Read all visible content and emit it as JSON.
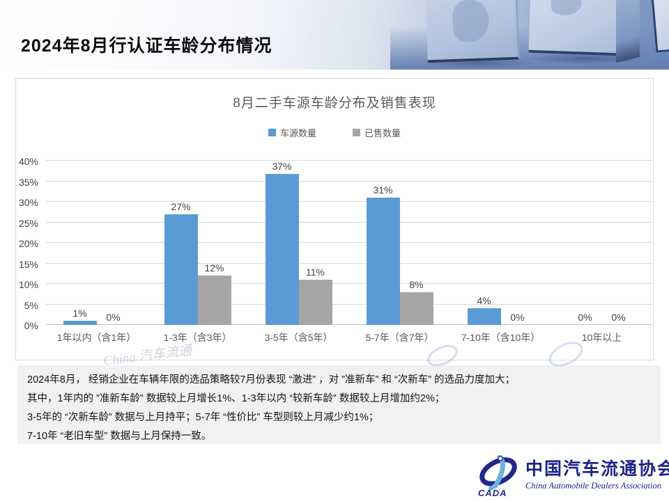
{
  "slide": {
    "title": "2024年8月行认证车龄分布情况"
  },
  "chart_data": {
    "type": "bar",
    "title": "8月二手车源车龄分布及销售表现",
    "categories": [
      "1年以内（含1年）",
      "1-3年（含3年）",
      "3-5年（含5年）",
      "5-7年（含7年）",
      "7-10年（含10年）",
      "10年以上"
    ],
    "series": [
      {
        "name": "车源数量",
        "color": "#5B9BD5",
        "values": [
          1,
          27,
          37,
          31,
          4,
          0
        ]
      },
      {
        "name": "已售数量",
        "color": "#A6A6A6",
        "values": [
          0,
          12,
          11,
          8,
          0,
          0
        ]
      }
    ],
    "ylim": [
      0,
      40
    ],
    "ytick_step": 5,
    "ytick_suffix": "%",
    "value_suffix": "%",
    "grid": true,
    "legend_position": "top-center",
    "colors": {
      "axis_text": "#404040",
      "gridline": "#D9D9D9",
      "title_text": "#595959"
    }
  },
  "notes": {
    "lines": [
      "2024年8月， 经销企业在车辆年限的选品策略较7月份表现 “激进” ，对 ”准新车” 和 “次新车” 的选品力度加大；",
      "其中，1年内的 ”准新车龄” 数据较上月增长1%、1-3年以内 “较新车龄” 数据较上月增加约2%；",
      "3-5年的 “次新车龄” 数据与上月持平；5-7年 “性价比” 车型则较上月减少约1%；",
      "7-10年 “老旧车型” 数据与上月保持一致。"
    ]
  },
  "watermark": {
    "text": "China 汽车流通"
  },
  "logo": {
    "acronym": "CADA",
    "cn_name": "中国汽车流通协会",
    "en_name": "China Automobile Dealers Association"
  }
}
